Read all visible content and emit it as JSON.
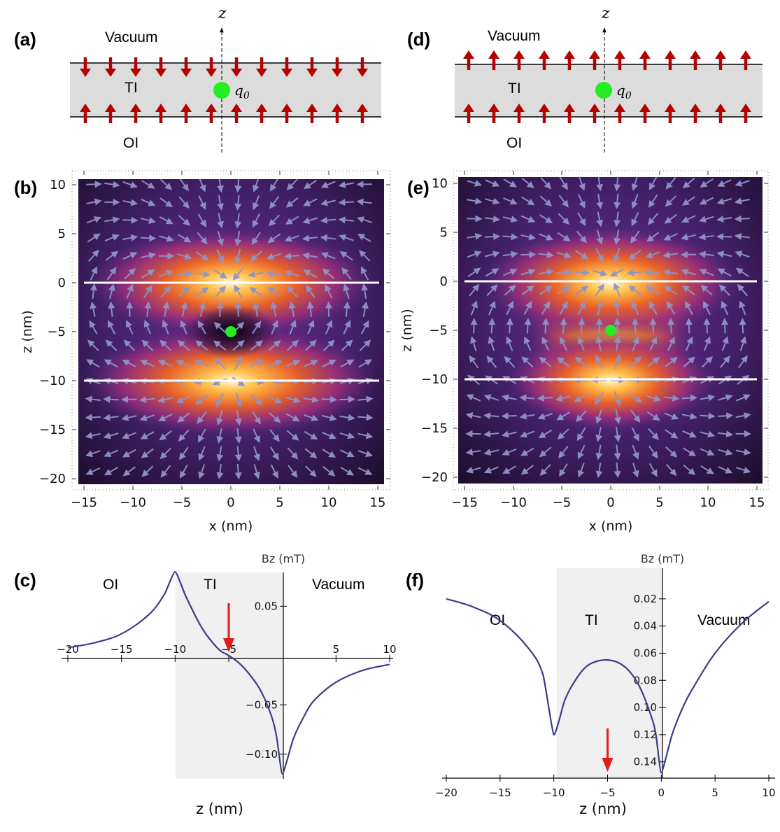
{
  "panels": {
    "a": {
      "label": "(a)",
      "vacuum": "Vacuum",
      "ti": "TI",
      "oi": "OI",
      "axis": "z",
      "charge": "q",
      "charge_sub": "0",
      "top_arrows": "down",
      "bottom_arrows": "up",
      "arrow_count": 12
    },
    "d": {
      "label": "(d)",
      "vacuum": "Vacuum",
      "ti": "TI",
      "oi": "OI",
      "axis": "z",
      "charge": "q",
      "charge_sub": "0",
      "top_arrows": "up",
      "bottom_arrows": "up",
      "arrow_count": 12
    },
    "b": {
      "label": "(b)",
      "xlabel": "x (nm)",
      "ylabel": "z (nm)",
      "xticks": [
        "−15",
        "−10",
        "−5",
        "0",
        "5",
        "10",
        "15"
      ],
      "yticks": [
        "10",
        "5",
        "0",
        "−5",
        "−10",
        "−15",
        "−20"
      ],
      "xlim": [
        -15.5,
        15.5
      ],
      "ylim": [
        -20.8,
        10.8
      ],
      "interfaces": [
        0,
        -10
      ],
      "charge_z": -5,
      "mode": "antiparallel"
    },
    "e": {
      "label": "(e)",
      "xlabel": "x (nm)",
      "ylabel": "z (nm)",
      "xticks": [
        "−15",
        "−10",
        "−5",
        "0",
        "5",
        "10",
        "15"
      ],
      "yticks": [
        "10",
        "5",
        "0",
        "−5",
        "−10",
        "−15",
        "−20"
      ],
      "xlim": [
        -15.5,
        15.5
      ],
      "ylim": [
        -20.8,
        10.8
      ],
      "interfaces": [
        0,
        -10
      ],
      "charge_z": -5,
      "mode": "parallel"
    }
  },
  "chart_data": [
    {
      "id": "c",
      "type": "line",
      "label": "(c)",
      "xlabel": "z (nm)",
      "ylabel": "Bz (mT)",
      "xlim": [
        -20,
        10
      ],
      "ylim": [
        -0.125,
        0.09
      ],
      "xticks": [
        "−20",
        "−15",
        "−10",
        "−5",
        "5",
        "10"
      ],
      "yticks": [
        "0.05",
        "−0.05",
        "−0.10"
      ],
      "regions": [
        "OI",
        "TI",
        "Vacuum"
      ],
      "shaded": [
        -10,
        0
      ],
      "arrow_at": -5,
      "x": [
        -20,
        -17.5,
        -15,
        -12.5,
        -11,
        -10,
        -9,
        -7.5,
        -6,
        -5,
        -4,
        -3,
        -2,
        -1,
        -0.5,
        0,
        1,
        2,
        3,
        5,
        7.5,
        10
      ],
      "y": [
        0.008,
        0.013,
        0.022,
        0.041,
        0.062,
        0.085,
        0.06,
        0.028,
        0.007,
        0.0,
        -0.008,
        -0.02,
        -0.036,
        -0.062,
        -0.085,
        -0.12,
        -0.085,
        -0.062,
        -0.045,
        -0.027,
        -0.015,
        -0.009
      ]
    },
    {
      "id": "f",
      "type": "line",
      "label": "(f)",
      "xlabel": "z (nm)",
      "ylabel": "Bz (mT)",
      "xlim": [
        -20,
        10
      ],
      "ylim": [
        0,
        0.152
      ],
      "xticks": [
        "−20",
        "−15",
        "−10",
        "−5",
        "0",
        "5",
        "10"
      ],
      "yticks": [
        "0.02",
        "0.04",
        "0.06",
        "0.08",
        "0.10",
        "0.12",
        "0.14"
      ],
      "regions": [
        "OI",
        "TI",
        "Vacuum"
      ],
      "shaded": [
        -10,
        0
      ],
      "arrow_at": -5,
      "x": [
        -20,
        -17.5,
        -15,
        -12.5,
        -11,
        -10,
        -9,
        -8,
        -7,
        -6,
        -5,
        -4,
        -3,
        -2,
        -1,
        -0.5,
        0,
        1,
        2,
        3,
        5,
        7.5,
        10
      ],
      "y": [
        0.02,
        0.026,
        0.036,
        0.055,
        0.076,
        0.12,
        0.095,
        0.08,
        0.07,
        0.066,
        0.065,
        0.067,
        0.073,
        0.085,
        0.105,
        0.12,
        0.148,
        0.12,
        0.1,
        0.085,
        0.06,
        0.038,
        0.022
      ]
    }
  ],
  "colors": {
    "arrow": "#b50000",
    "charge": "#22ee22",
    "stream": "#8f93c9",
    "curve": "#3a3c8a",
    "shade": "#f0f0f0",
    "slab": "#dcdcdc",
    "red_arrow": "#e21b1b"
  }
}
